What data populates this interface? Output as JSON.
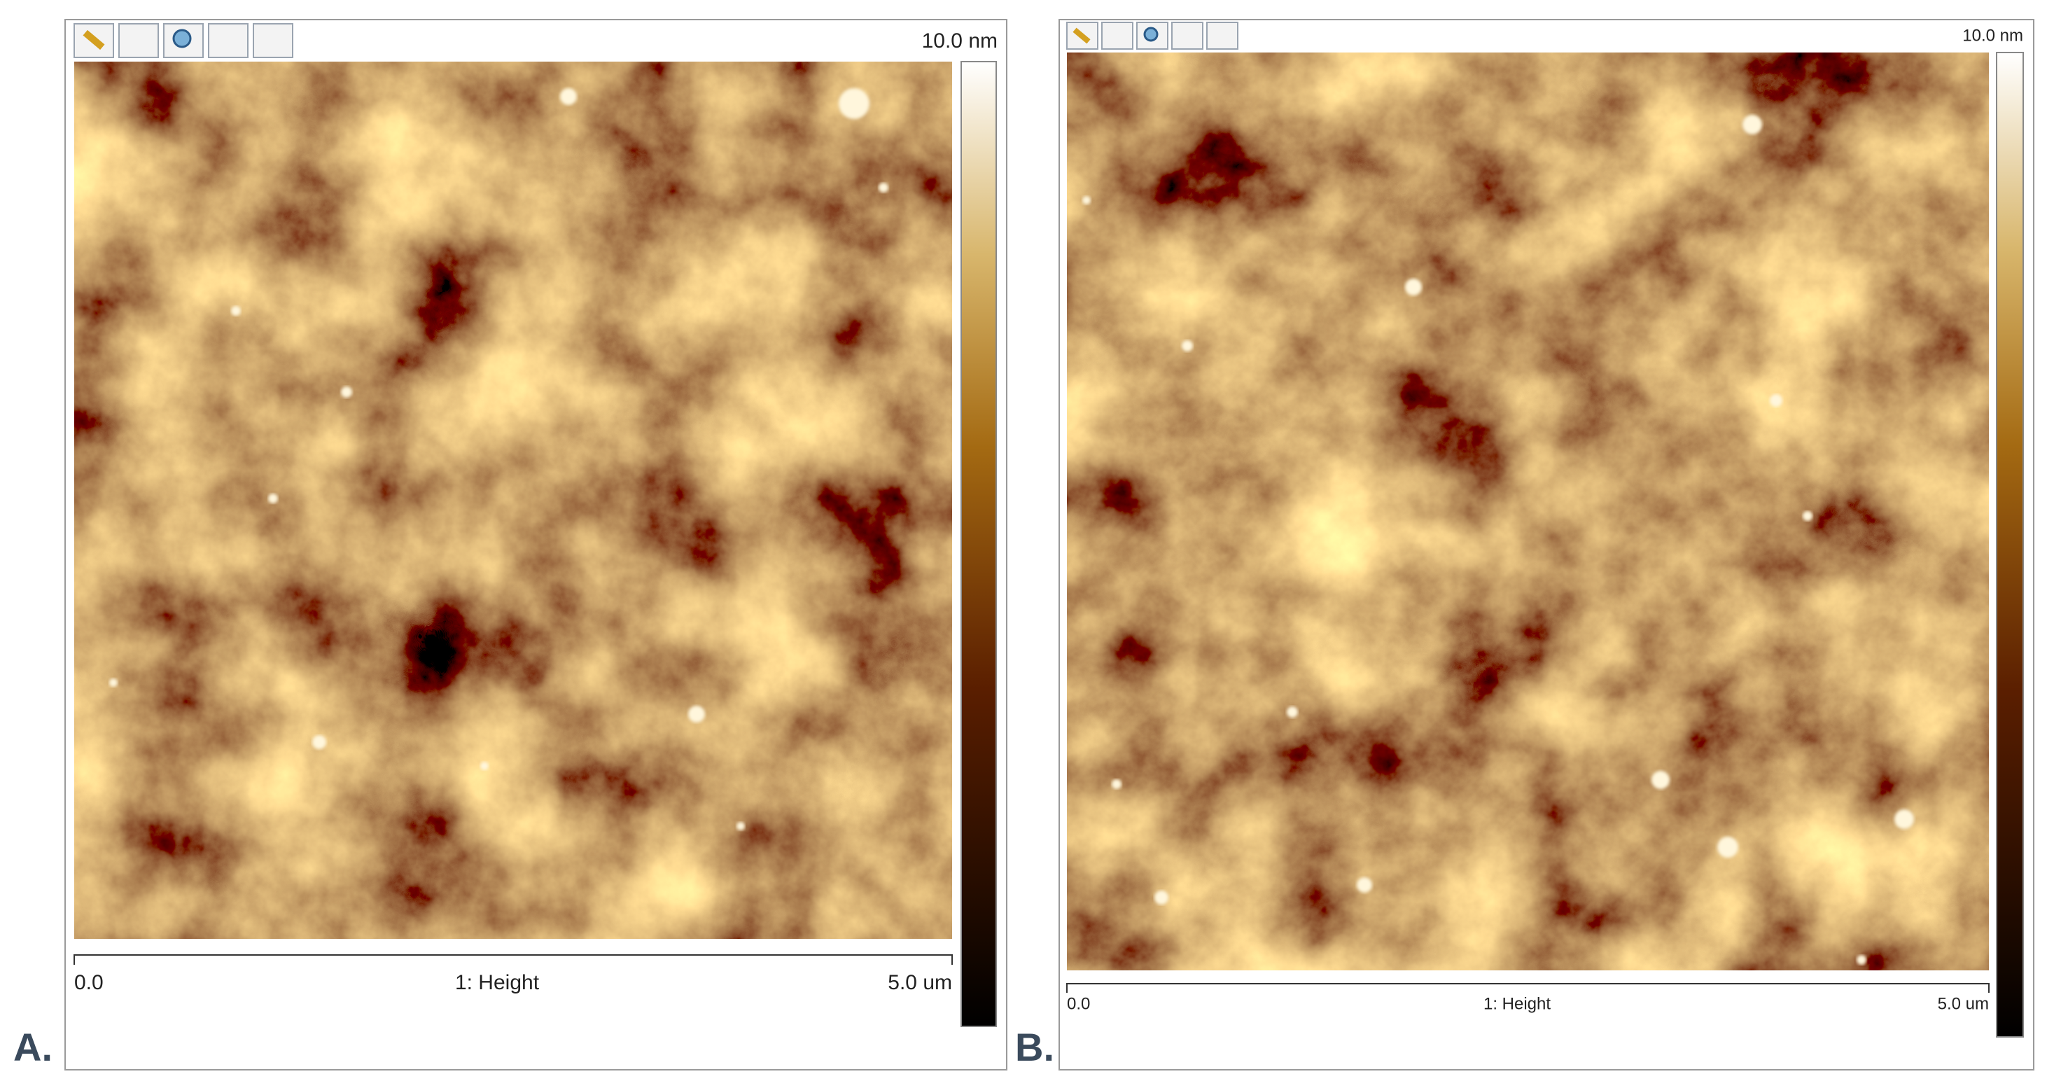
{
  "panels": [
    {
      "label": "A.",
      "scale_max": "10.0 nm",
      "axis_start": "0.0",
      "axis_title": "1: Height",
      "axis_end": "5.0 um"
    },
    {
      "label": "B.",
      "scale_max": "10.0 nm",
      "axis_start": "0.0",
      "axis_title": "1: Height",
      "axis_end": "5.0 um"
    }
  ]
}
